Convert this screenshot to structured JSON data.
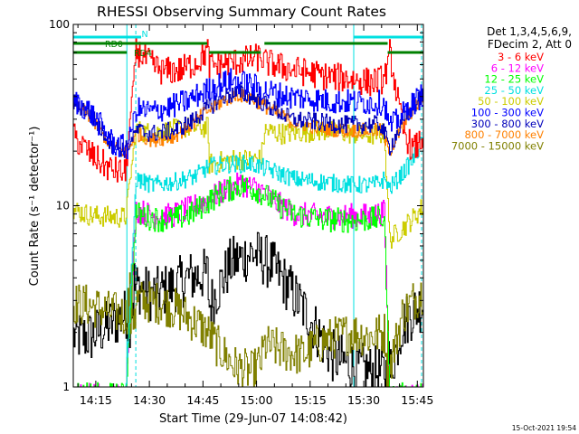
{
  "chart_data": {
    "type": "line",
    "title": "RHESSI Observing Summary Count Rates",
    "xlabel": "Start Time (29-Jun-07 14:08:42)",
    "ylabel": "Count Rate (s⁻¹ detector⁻¹)",
    "ylog": true,
    "ylim": [
      1,
      100
    ],
    "xlim": [
      0,
      98
    ],
    "x_units": "minutes after 14:08:42",
    "x_ticks": [
      {
        "x": 6.3,
        "label": "14:15"
      },
      {
        "x": 21.3,
        "label": "14:30"
      },
      {
        "x": 36.3,
        "label": "14:45"
      },
      {
        "x": 51.3,
        "label": "15:00"
      },
      {
        "x": 66.3,
        "label": "15:15"
      },
      {
        "x": 81.3,
        "label": "15:30"
      },
      {
        "x": 96.3,
        "label": "15:45"
      }
    ],
    "y_ticks": [
      {
        "y": 1,
        "label": "1"
      },
      {
        "y": 10,
        "label": "10"
      },
      {
        "y": 100,
        "label": "100"
      }
    ],
    "legend": {
      "position": "top-right",
      "title_lines": [
        "Det 1,3,4,5,6,9,",
        "FDecim 2, Att 0"
      ]
    },
    "flags": [
      {
        "name": "N",
        "color": "#00e0e0",
        "segments": [
          [
            0,
            19
          ],
          [
            78.5,
            98
          ]
        ]
      },
      {
        "name": "RD0",
        "color": "#008000",
        "segments": [
          [
            0,
            37.5
          ],
          [
            53.5,
            88
          ]
        ]
      },
      {
        "name": "RD4",
        "color": "#008000",
        "segments": [
          [
            0,
            15
          ],
          [
            38,
            52.5
          ],
          [
            88,
            98
          ]
        ]
      }
    ],
    "vertical_markers": [
      {
        "x": 0,
        "style": "solid",
        "color": "#00e0e0"
      },
      {
        "x": 15,
        "style": "solid",
        "color": "#00e0e0"
      },
      {
        "x": 17.5,
        "style": "dashed",
        "color": "#00e0e0"
      },
      {
        "x": 78.5,
        "style": "solid",
        "color": "#00e0e0"
      },
      {
        "x": 97.5,
        "style": "dashed",
        "color": "#00e0e0"
      }
    ],
    "gaps": [
      [
        15,
        17.5
      ],
      [
        87.5,
        88.5
      ]
    ],
    "series": [
      {
        "name": "3 - 6 keV",
        "color": "#ff0000",
        "noise": 0.08,
        "noise_gap": 0.03,
        "points": [
          [
            0,
            24
          ],
          [
            5,
            19
          ],
          [
            10,
            16
          ],
          [
            14.5,
            15
          ],
          [
            17.5,
            72
          ],
          [
            22,
            60
          ],
          [
            25,
            55
          ],
          [
            30,
            56
          ],
          [
            35,
            63
          ],
          [
            37.5,
            72
          ],
          [
            38,
            59
          ],
          [
            45,
            62
          ],
          [
            52.5,
            66
          ],
          [
            53.5,
            62
          ],
          [
            60,
            57
          ],
          [
            70,
            52
          ],
          [
            78,
            50
          ],
          [
            83,
            48
          ],
          [
            87,
            50
          ],
          [
            88.5,
            70
          ],
          [
            92,
            27
          ],
          [
            95,
            20
          ],
          [
            98,
            24
          ]
        ]
      },
      {
        "name": "6 - 12 keV",
        "color": "#ff00ff",
        "noise": 0.07,
        "noise_gap": 0.03,
        "points": [
          [
            0,
            0.9
          ],
          [
            14.5,
            0.9
          ],
          [
            17.5,
            9.5
          ],
          [
            22,
            8.8
          ],
          [
            27,
            8.8
          ],
          [
            33,
            9.7
          ],
          [
            37.5,
            10.8
          ],
          [
            42,
            12
          ],
          [
            47,
            13.2
          ],
          [
            52,
            12.3
          ],
          [
            57,
            10.3
          ],
          [
            62,
            9
          ],
          [
            70,
            8.7
          ],
          [
            78,
            8.8
          ],
          [
            83,
            8.8
          ],
          [
            87,
            9.2
          ],
          [
            88.5,
            0.9
          ],
          [
            98,
            0.9
          ]
        ]
      },
      {
        "name": "12 - 25 keV",
        "color": "#00ff00",
        "noise": 0.07,
        "noise_gap": 0.03,
        "points": [
          [
            0,
            0.9
          ],
          [
            14.5,
            0.9
          ],
          [
            17.5,
            9
          ],
          [
            22,
            8.5
          ],
          [
            27,
            8.3
          ],
          [
            33,
            9
          ],
          [
            37.5,
            10.5
          ],
          [
            42,
            12
          ],
          [
            47,
            13
          ],
          [
            52,
            12
          ],
          [
            57,
            10.2
          ],
          [
            62,
            8.9
          ],
          [
            70,
            8.4
          ],
          [
            78,
            8.3
          ],
          [
            83,
            8.4
          ],
          [
            87,
            8.5
          ],
          [
            88.5,
            0.9
          ],
          [
            98,
            0.9
          ]
        ]
      },
      {
        "name": "25 - 50 keV",
        "color": "#00e0e0",
        "noise": 0.05,
        "noise_gap": 0.03,
        "points": [
          [
            0,
            0.9
          ],
          [
            14.5,
            0.9
          ],
          [
            17.5,
            14
          ],
          [
            22,
            13
          ],
          [
            28,
            13.5
          ],
          [
            34,
            14.5
          ],
          [
            38,
            16.5
          ],
          [
            44,
            17
          ],
          [
            50,
            17
          ],
          [
            56,
            15.5
          ],
          [
            62,
            14
          ],
          [
            70,
            13.5
          ],
          [
            78,
            13
          ],
          [
            84,
            13
          ],
          [
            87,
            14
          ],
          [
            88.5,
            12.5
          ],
          [
            92,
            15
          ],
          [
            95,
            18
          ],
          [
            98,
            23
          ]
        ]
      },
      {
        "name": "50 - 100 keV",
        "color": "#cccc00",
        "noise": 0.06,
        "noise_gap": 0.04,
        "points": [
          [
            0,
            9.5
          ],
          [
            5,
            8.8
          ],
          [
            10,
            8.7
          ],
          [
            14.5,
            8.6
          ],
          [
            17.5,
            26
          ],
          [
            22,
            25
          ],
          [
            27,
            26
          ],
          [
            32,
            27
          ],
          [
            37.5,
            27
          ],
          [
            38,
            17
          ],
          [
            45,
            18
          ],
          [
            52.5,
            18
          ],
          [
            53.5,
            26
          ],
          [
            58,
            25
          ],
          [
            64,
            25.5
          ],
          [
            70,
            26
          ],
          [
            78,
            25
          ],
          [
            83,
            24.5
          ],
          [
            87,
            25
          ],
          [
            88.5,
            6.5
          ],
          [
            92,
            7.5
          ],
          [
            95,
            8.5
          ],
          [
            98,
            10
          ]
        ]
      },
      {
        "name": "100 - 300 keV",
        "color": "#0000ff",
        "noise": 0.07,
        "noise_gap": 0.05,
        "points": [
          [
            0,
            38
          ],
          [
            4,
            34
          ],
          [
            8,
            27
          ],
          [
            11,
            22
          ],
          [
            14,
            21
          ],
          [
            15,
            21
          ],
          [
            17.5,
            34
          ],
          [
            22,
            33
          ],
          [
            27,
            35
          ],
          [
            32,
            38
          ],
          [
            36,
            42
          ],
          [
            40,
            46
          ],
          [
            44,
            49
          ],
          [
            49,
            47
          ],
          [
            54,
            43
          ],
          [
            60,
            40
          ],
          [
            66,
            39
          ],
          [
            72,
            37.5
          ],
          [
            78,
            37.5
          ],
          [
            83,
            37
          ],
          [
            87,
            37
          ],
          [
            88.5,
            27
          ],
          [
            91,
            30
          ],
          [
            94,
            35
          ],
          [
            97,
            40
          ],
          [
            98,
            42
          ]
        ]
      },
      {
        "name": "300 - 800 keV",
        "color": "#0000bb",
        "noise": 0.05,
        "noise_gap": 0.03,
        "points": [
          [
            0,
            37
          ],
          [
            4,
            33
          ],
          [
            8,
            26
          ],
          [
            11,
            21.5
          ],
          [
            14,
            20.5
          ],
          [
            15,
            20.5
          ],
          [
            17.5,
            26
          ],
          [
            22,
            25
          ],
          [
            28,
            26
          ],
          [
            33,
            29
          ],
          [
            37,
            34
          ],
          [
            42,
            40
          ],
          [
            46,
            42
          ],
          [
            50,
            40
          ],
          [
            55,
            35
          ],
          [
            61,
            30
          ],
          [
            68,
            29
          ],
          [
            75,
            28
          ],
          [
            81,
            28
          ],
          [
            86,
            28
          ],
          [
            88.5,
            21
          ],
          [
            91,
            26
          ],
          [
            94,
            33
          ],
          [
            97,
            39
          ],
          [
            98,
            41
          ]
        ]
      },
      {
        "name": "800 - 7000 keV",
        "color": "#ff8000",
        "noise": 0.04,
        "noise_gap": 0.03,
        "points": [
          [
            0,
            36
          ],
          [
            4,
            32
          ],
          [
            8,
            25
          ],
          [
            11,
            21
          ],
          [
            14,
            20
          ],
          [
            15,
            20
          ],
          [
            17.5,
            25
          ],
          [
            22,
            23
          ],
          [
            28,
            24
          ],
          [
            33,
            28
          ],
          [
            37,
            33
          ],
          [
            42,
            38
          ],
          [
            46,
            41
          ],
          [
            50,
            39
          ],
          [
            55,
            34
          ],
          [
            61,
            29
          ],
          [
            68,
            27
          ],
          [
            75,
            26
          ],
          [
            81,
            26
          ],
          [
            86,
            26
          ],
          [
            88.5,
            20
          ],
          [
            91,
            25
          ],
          [
            94,
            32
          ],
          [
            97,
            38
          ],
          [
            98,
            40
          ]
        ]
      },
      {
        "name": "7000 - 15000 keV",
        "color": "#808000",
        "noise": 0.12,
        "noise_gap": 0.25,
        "floor": 1,
        "points": [
          [
            0,
            2.9
          ],
          [
            5,
            2.8
          ],
          [
            10,
            2.6
          ],
          [
            14.5,
            2.5
          ],
          [
            17.5,
            3
          ],
          [
            25,
            2.9
          ],
          [
            30,
            2.6
          ],
          [
            35,
            2.2
          ],
          [
            37.5,
            2
          ],
          [
            40,
            1.7
          ],
          [
            45,
            1.3
          ],
          [
            50,
            1.2
          ],
          [
            52.5,
            1.4
          ],
          [
            53.5,
            1.7
          ],
          [
            58,
            1.6
          ],
          [
            64,
            1.5
          ],
          [
            70,
            1.8
          ],
          [
            78,
            2
          ],
          [
            83,
            1.9
          ],
          [
            87,
            2
          ],
          [
            88.5,
            1.3
          ],
          [
            92,
            2.5
          ],
          [
            95,
            3
          ],
          [
            98,
            3.4
          ]
        ]
      }
    ],
    "background": {
      "name": "detector-background",
      "color": "#000000",
      "noise": 0.15,
      "noise_gap": 0.25,
      "floor": 1,
      "points": [
        [
          0,
          1.9
        ],
        [
          5,
          1.9
        ],
        [
          10,
          2.2
        ],
        [
          14.5,
          2.5
        ],
        [
          17.5,
          3.6
        ],
        [
          22,
          3.2
        ],
        [
          27,
          3.5
        ],
        [
          32,
          4
        ],
        [
          37.5,
          4.2
        ],
        [
          38,
          2.8
        ],
        [
          44,
          4.8
        ],
        [
          50,
          5.5
        ],
        [
          55,
          4.8
        ],
        [
          60,
          3.6
        ],
        [
          66,
          2.4
        ],
        [
          72,
          1.5
        ],
        [
          78,
          1.3
        ],
        [
          84,
          1.2
        ],
        [
          87,
          1.2
        ],
        [
          88.5,
          1.2
        ],
        [
          92,
          2.2
        ],
        [
          95,
          2.6
        ],
        [
          98,
          2.9
        ]
      ]
    },
    "footer_date": "15-Oct-2021 19:54"
  }
}
